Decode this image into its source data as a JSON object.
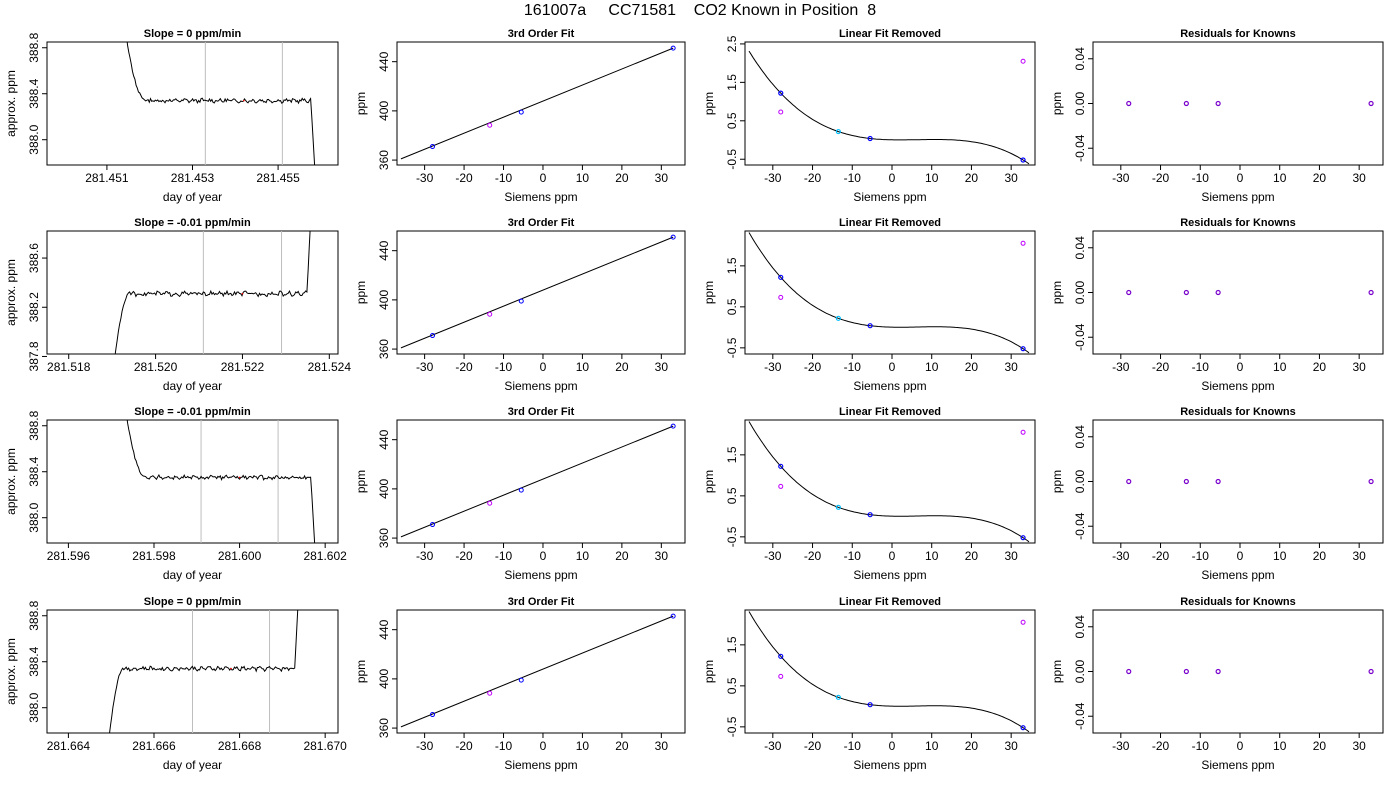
{
  "figure": {
    "title": "161007a     CC71581    CO2 Known in Position  8"
  },
  "chart_data": [
    {
      "row": 0,
      "col": 0,
      "type": "line",
      "title": "Slope =  0  ppm/min",
      "xlabel": "day of year",
      "ylabel": "approx. ppm",
      "xlim": [
        281.4496,
        281.4564
      ],
      "ylim": [
        387.78,
        388.85
      ],
      "xticks": [
        281.451,
        281.453,
        281.455
      ],
      "xticklabels": [
        "281.451",
        "281.453",
        "281.455"
      ],
      "yticks": [
        388.0,
        388.4,
        388.8
      ],
      "yticklabels": [
        "388.0",
        "388.4",
        "388.8"
      ],
      "vlines": [
        281.4533,
        281.4551
      ],
      "trace_shape": "fall",
      "trace_x": [
        281.4514,
        281.4559
      ],
      "level": 388.34
    },
    {
      "row": 0,
      "col": 1,
      "type": "scatter",
      "title": "3rd Order Fit",
      "xlabel": "Siemens ppm",
      "ylabel": "ppm",
      "xlim": [
        -37,
        36
      ],
      "ylim": [
        356,
        456
      ],
      "xticks": [
        -30,
        -20,
        -10,
        0,
        10,
        20,
        30
      ],
      "xticklabels": [
        "-30",
        "-20",
        "-10",
        "0",
        "10",
        "20",
        "30"
      ],
      "yticks": [
        360,
        400,
        440
      ],
      "yticklabels": [
        "360",
        "400",
        "440"
      ],
      "points": [
        [
          -28,
          371.0
        ],
        [
          -13.5,
          388.3
        ],
        [
          -5.5,
          399.0
        ],
        [
          33,
          451.0
        ]
      ],
      "fit_line": [
        [
          -36,
          361.0
        ],
        [
          33,
          451.0
        ]
      ]
    },
    {
      "row": 0,
      "col": 2,
      "type": "scatter",
      "title": "Linear Fit Removed",
      "xlabel": "Siemens ppm",
      "ylabel": "ppm",
      "xlim": [
        -37,
        36
      ],
      "ylim": [
        -0.65,
        2.55
      ],
      "xticks": [
        -30,
        -20,
        -10,
        0,
        10,
        20,
        30
      ],
      "xticklabels": [
        "-30",
        "-20",
        "-10",
        "0",
        "10",
        "20",
        "30"
      ],
      "yticks": [
        -0.5,
        0.5,
        1.5,
        2.5
      ],
      "yticklabels": [
        "-0.5",
        "0.5",
        "1.5",
        "2.5"
      ],
      "points": [
        [
          -28,
          1.22
        ],
        [
          -13.5,
          0.22
        ],
        [
          -5.5,
          0.04
        ],
        [
          33,
          -0.52
        ]
      ],
      "other_points": [
        [
          -28,
          0.73
        ],
        [
          33,
          2.05
        ]
      ]
    },
    {
      "row": 0,
      "col": 3,
      "type": "scatter",
      "title": "Residuals for Knowns",
      "xlabel": "Siemens ppm",
      "ylabel": "ppm",
      "xlim": [
        -37,
        36
      ],
      "ylim": [
        -0.055,
        0.055
      ],
      "xticks": [
        -30,
        -20,
        -10,
        0,
        10,
        20,
        30
      ],
      "xticklabels": [
        "-30",
        "-20",
        "-10",
        "0",
        "10",
        "20",
        "30"
      ],
      "yticks": [
        -0.04,
        0.0,
        0.04
      ],
      "yticklabels": [
        "-0.04",
        "0.00",
        "0.04"
      ],
      "points": [
        [
          -28,
          0
        ],
        [
          -13.5,
          0
        ],
        [
          -5.5,
          0
        ],
        [
          33,
          0
        ]
      ]
    },
    {
      "row": 1,
      "col": 0,
      "type": "line",
      "title": "Slope =  -0.01  ppm/min",
      "xlabel": "day of year",
      "ylabel": "approx. ppm",
      "xlim": [
        281.5175,
        281.5242
      ],
      "ylim": [
        387.82,
        388.82
      ],
      "xticks": [
        281.518,
        281.52,
        281.522,
        281.524
      ],
      "xticklabels": [
        "281.518",
        "281.520",
        "281.522",
        "281.524"
      ],
      "yticks": [
        387.8,
        388.2,
        388.6
      ],
      "yticklabels": [
        "387.8",
        "388.2",
        "388.6"
      ],
      "vlines": [
        281.5211,
        281.5229
      ],
      "trace_shape": "rise",
      "trace_x": [
        281.519,
        281.5236
      ],
      "level": 388.31
    },
    {
      "row": 1,
      "col": 1,
      "type": "scatter",
      "title": "3rd Order Fit",
      "xlabel": "Siemens ppm",
      "ylabel": "ppm",
      "xlim": [
        -37,
        36
      ],
      "ylim": [
        356,
        456
      ],
      "xticks": [
        -30,
        -20,
        -10,
        0,
        10,
        20,
        30
      ],
      "xticklabels": [
        "-30",
        "-20",
        "-10",
        "0",
        "10",
        "20",
        "30"
      ],
      "yticks": [
        360,
        400,
        440
      ],
      "yticklabels": [
        "360",
        "400",
        "440"
      ],
      "points": [
        [
          -28,
          371.0
        ],
        [
          -13.5,
          388.3
        ],
        [
          -5.5,
          399.0
        ],
        [
          33,
          451.0
        ]
      ],
      "fit_line": [
        [
          -36,
          361.0
        ],
        [
          33,
          451.0
        ]
      ]
    },
    {
      "row": 1,
      "col": 2,
      "type": "scatter",
      "title": "Linear Fit Removed",
      "xlabel": "Siemens ppm",
      "ylabel": "ppm",
      "xlim": [
        -37,
        36
      ],
      "ylim": [
        -0.65,
        2.35
      ],
      "xticks": [
        -30,
        -20,
        -10,
        0,
        10,
        20,
        30
      ],
      "xticklabels": [
        "-30",
        "-20",
        "-10",
        "0",
        "10",
        "20",
        "30"
      ],
      "yticks": [
        -0.5,
        0.5,
        1.5
      ],
      "yticklabels": [
        "-0.5",
        "0.5",
        "1.5"
      ],
      "points": [
        [
          -28,
          1.22
        ],
        [
          -13.5,
          0.22
        ],
        [
          -5.5,
          0.04
        ],
        [
          33,
          -0.52
        ]
      ],
      "other_points": [
        [
          -28,
          0.73
        ],
        [
          33,
          2.05
        ]
      ]
    },
    {
      "row": 1,
      "col": 3,
      "type": "scatter",
      "title": "Residuals for Knowns",
      "xlabel": "Siemens ppm",
      "ylabel": "ppm",
      "xlim": [
        -37,
        36
      ],
      "ylim": [
        -0.055,
        0.055
      ],
      "xticks": [
        -30,
        -20,
        -10,
        0,
        10,
        20,
        30
      ],
      "xticklabels": [
        "-30",
        "-20",
        "-10",
        "0",
        "10",
        "20",
        "30"
      ],
      "yticks": [
        -0.04,
        0.0,
        0.04
      ],
      "yticklabels": [
        "-0.04",
        "0.00",
        "0.04"
      ],
      "points": [
        [
          -28,
          0
        ],
        [
          -13.5,
          0
        ],
        [
          -5.5,
          0
        ],
        [
          33,
          0
        ]
      ]
    },
    {
      "row": 2,
      "col": 0,
      "type": "line",
      "title": "Slope =  -0.01  ppm/min",
      "xlabel": "day of year",
      "ylabel": "approx. ppm",
      "xlim": [
        281.5955,
        281.6023
      ],
      "ylim": [
        387.78,
        388.85
      ],
      "xticks": [
        281.596,
        281.598,
        281.6,
        281.602
      ],
      "xticklabels": [
        "281.596",
        "281.598",
        "281.600",
        "281.602"
      ],
      "yticks": [
        388.0,
        388.4,
        388.8
      ],
      "yticklabels": [
        "388.0",
        "388.4",
        "388.8"
      ],
      "vlines": [
        281.5991,
        281.6009
      ],
      "trace_shape": "fall",
      "trace_x": [
        281.5973,
        281.6018
      ],
      "level": 388.35
    },
    {
      "row": 2,
      "col": 1,
      "type": "scatter",
      "title": "3rd Order Fit",
      "xlabel": "Siemens ppm",
      "ylabel": "ppm",
      "xlim": [
        -37,
        36
      ],
      "ylim": [
        356,
        456
      ],
      "xticks": [
        -30,
        -20,
        -10,
        0,
        10,
        20,
        30
      ],
      "xticklabels": [
        "-30",
        "-20",
        "-10",
        "0",
        "10",
        "20",
        "30"
      ],
      "yticks": [
        360,
        400,
        440
      ],
      "yticklabels": [
        "360",
        "400",
        "440"
      ],
      "points": [
        [
          -28,
          371.0
        ],
        [
          -13.5,
          388.3
        ],
        [
          -5.5,
          399.0
        ],
        [
          33,
          451.0
        ]
      ],
      "fit_line": [
        [
          -36,
          361.0
        ],
        [
          33,
          451.0
        ]
      ]
    },
    {
      "row": 2,
      "col": 2,
      "type": "scatter",
      "title": "Linear Fit Removed",
      "xlabel": "Siemens ppm",
      "ylabel": "ppm",
      "xlim": [
        -37,
        36
      ],
      "ylim": [
        -0.65,
        2.35
      ],
      "xticks": [
        -30,
        -20,
        -10,
        0,
        10,
        20,
        30
      ],
      "xticklabels": [
        "-30",
        "-20",
        "-10",
        "0",
        "10",
        "20",
        "30"
      ],
      "yticks": [
        -0.5,
        0.5,
        1.5
      ],
      "yticklabels": [
        "-0.5",
        "0.5",
        "1.5"
      ],
      "points": [
        [
          -28,
          1.22
        ],
        [
          -13.5,
          0.22
        ],
        [
          -5.5,
          0.04
        ],
        [
          33,
          -0.52
        ]
      ],
      "other_points": [
        [
          -28,
          0.73
        ],
        [
          33,
          2.05
        ]
      ]
    },
    {
      "row": 2,
      "col": 3,
      "type": "scatter",
      "title": "Residuals for Knowns",
      "xlabel": "Siemens ppm",
      "ylabel": "ppm",
      "xlim": [
        -37,
        36
      ],
      "ylim": [
        -0.055,
        0.055
      ],
      "xticks": [
        -30,
        -20,
        -10,
        0,
        10,
        20,
        30
      ],
      "xticklabels": [
        "-30",
        "-20",
        "-10",
        "0",
        "10",
        "20",
        "30"
      ],
      "yticks": [
        -0.04,
        0.0,
        0.04
      ],
      "yticklabels": [
        "-0.04",
        "0.00",
        "0.04"
      ],
      "points": [
        [
          -28,
          0
        ],
        [
          -13.5,
          0
        ],
        [
          -5.5,
          0
        ],
        [
          33,
          0
        ]
      ]
    },
    {
      "row": 3,
      "col": 0,
      "type": "line",
      "title": "Slope =  0  ppm/min",
      "xlabel": "day of year",
      "ylabel": "approx. ppm",
      "xlim": [
        281.6635,
        281.6703
      ],
      "ylim": [
        387.78,
        388.85
      ],
      "xticks": [
        281.664,
        281.666,
        281.668,
        281.67
      ],
      "xticklabels": [
        "281.664",
        "281.666",
        "281.668",
        "281.670"
      ],
      "yticks": [
        388.0,
        388.4,
        388.8
      ],
      "yticklabels": [
        "388.0",
        "388.4",
        "388.8"
      ],
      "vlines": [
        281.6669,
        281.6687
      ],
      "trace_shape": "rise",
      "trace_x": [
        281.6649,
        281.6694
      ],
      "level": 388.34
    },
    {
      "row": 3,
      "col": 1,
      "type": "scatter",
      "title": "3rd Order Fit",
      "xlabel": "Siemens ppm",
      "ylabel": "ppm",
      "xlim": [
        -37,
        36
      ],
      "ylim": [
        356,
        456
      ],
      "xticks": [
        -30,
        -20,
        -10,
        0,
        10,
        20,
        30
      ],
      "xticklabels": [
        "-30",
        "-20",
        "-10",
        "0",
        "10",
        "20",
        "30"
      ],
      "yticks": [
        360,
        400,
        440
      ],
      "yticklabels": [
        "360",
        "400",
        "440"
      ],
      "points": [
        [
          -28,
          371.0
        ],
        [
          -13.5,
          388.3
        ],
        [
          -5.5,
          399.0
        ],
        [
          33,
          451.0
        ]
      ],
      "fit_line": [
        [
          -36,
          361.0
        ],
        [
          33,
          451.0
        ]
      ]
    },
    {
      "row": 3,
      "col": 2,
      "type": "scatter",
      "title": "Linear Fit Removed",
      "xlabel": "Siemens ppm",
      "ylabel": "ppm",
      "xlim": [
        -37,
        36
      ],
      "ylim": [
        -0.65,
        2.35
      ],
      "xticks": [
        -30,
        -20,
        -10,
        0,
        10,
        20,
        30
      ],
      "xticklabels": [
        "-30",
        "-20",
        "-10",
        "0",
        "10",
        "20",
        "30"
      ],
      "yticks": [
        -0.5,
        0.5,
        1.5
      ],
      "yticklabels": [
        "-0.5",
        "0.5",
        "1.5"
      ],
      "points": [
        [
          -28,
          1.22
        ],
        [
          -13.5,
          0.22
        ],
        [
          -5.5,
          0.04
        ],
        [
          33,
          -0.52
        ]
      ],
      "other_points": [
        [
          -28,
          0.73
        ],
        [
          33,
          2.05
        ]
      ]
    },
    {
      "row": 3,
      "col": 3,
      "type": "scatter",
      "title": "Residuals for Knowns",
      "xlabel": "Siemens ppm",
      "ylabel": "ppm",
      "xlim": [
        -37,
        36
      ],
      "ylim": [
        -0.055,
        0.055
      ],
      "xticks": [
        -30,
        -20,
        -10,
        0,
        10,
        20,
        30
      ],
      "xticklabels": [
        "-30",
        "-20",
        "-10",
        "0",
        "10",
        "20",
        "30"
      ],
      "yticks": [
        -0.04,
        0.0,
        0.04
      ],
      "yticklabels": [
        "-0.04",
        "0.00",
        "0.04"
      ],
      "points": [
        [
          -28,
          0
        ],
        [
          -13.5,
          0
        ],
        [
          -5.5,
          0
        ],
        [
          33,
          0
        ]
      ]
    }
  ],
  "colors": {
    "axis": "#000000",
    "trace": "#000000",
    "vline": "#bebebe",
    "fit_curve": "#000000",
    "known_point": "#0000ff",
    "known_point_alt": "#00bfff",
    "other_point": "#c000ff",
    "residual_point": "#7a00cc"
  }
}
